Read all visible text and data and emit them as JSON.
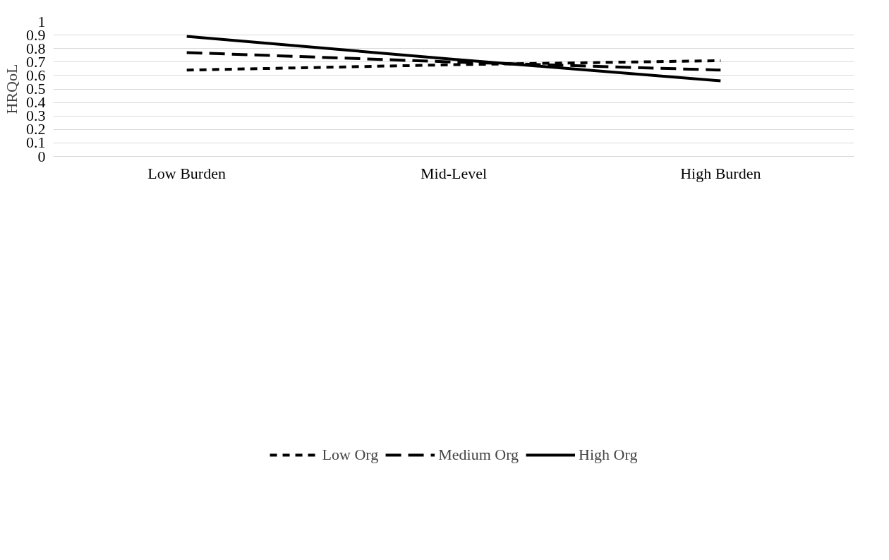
{
  "chart_data": {
    "type": "line",
    "ylabel": "HRQoL",
    "categories": [
      "Low Burden",
      "Mid-Level",
      "High Burden"
    ],
    "series": [
      {
        "name": "Low Org",
        "color": "#000000",
        "values": [
          0.64,
          0.68,
          0.71
        ],
        "line_style": "dotted"
      },
      {
        "name": "Medium Org",
        "color": "#000000",
        "values": [
          0.77,
          0.7,
          0.64
        ],
        "line_style": "dashed"
      },
      {
        "name": "High Org",
        "color": "#000000",
        "values": [
          0.89,
          0.72,
          0.56
        ],
        "line_style": "solid"
      }
    ],
    "ylim": [
      0,
      1
    ],
    "yticks": [
      0,
      0.1,
      0.2,
      0.3,
      0.4,
      0.5,
      0.6,
      0.7,
      0.8,
      0.9,
      1
    ],
    "grid": "y",
    "legend": "bottom"
  }
}
